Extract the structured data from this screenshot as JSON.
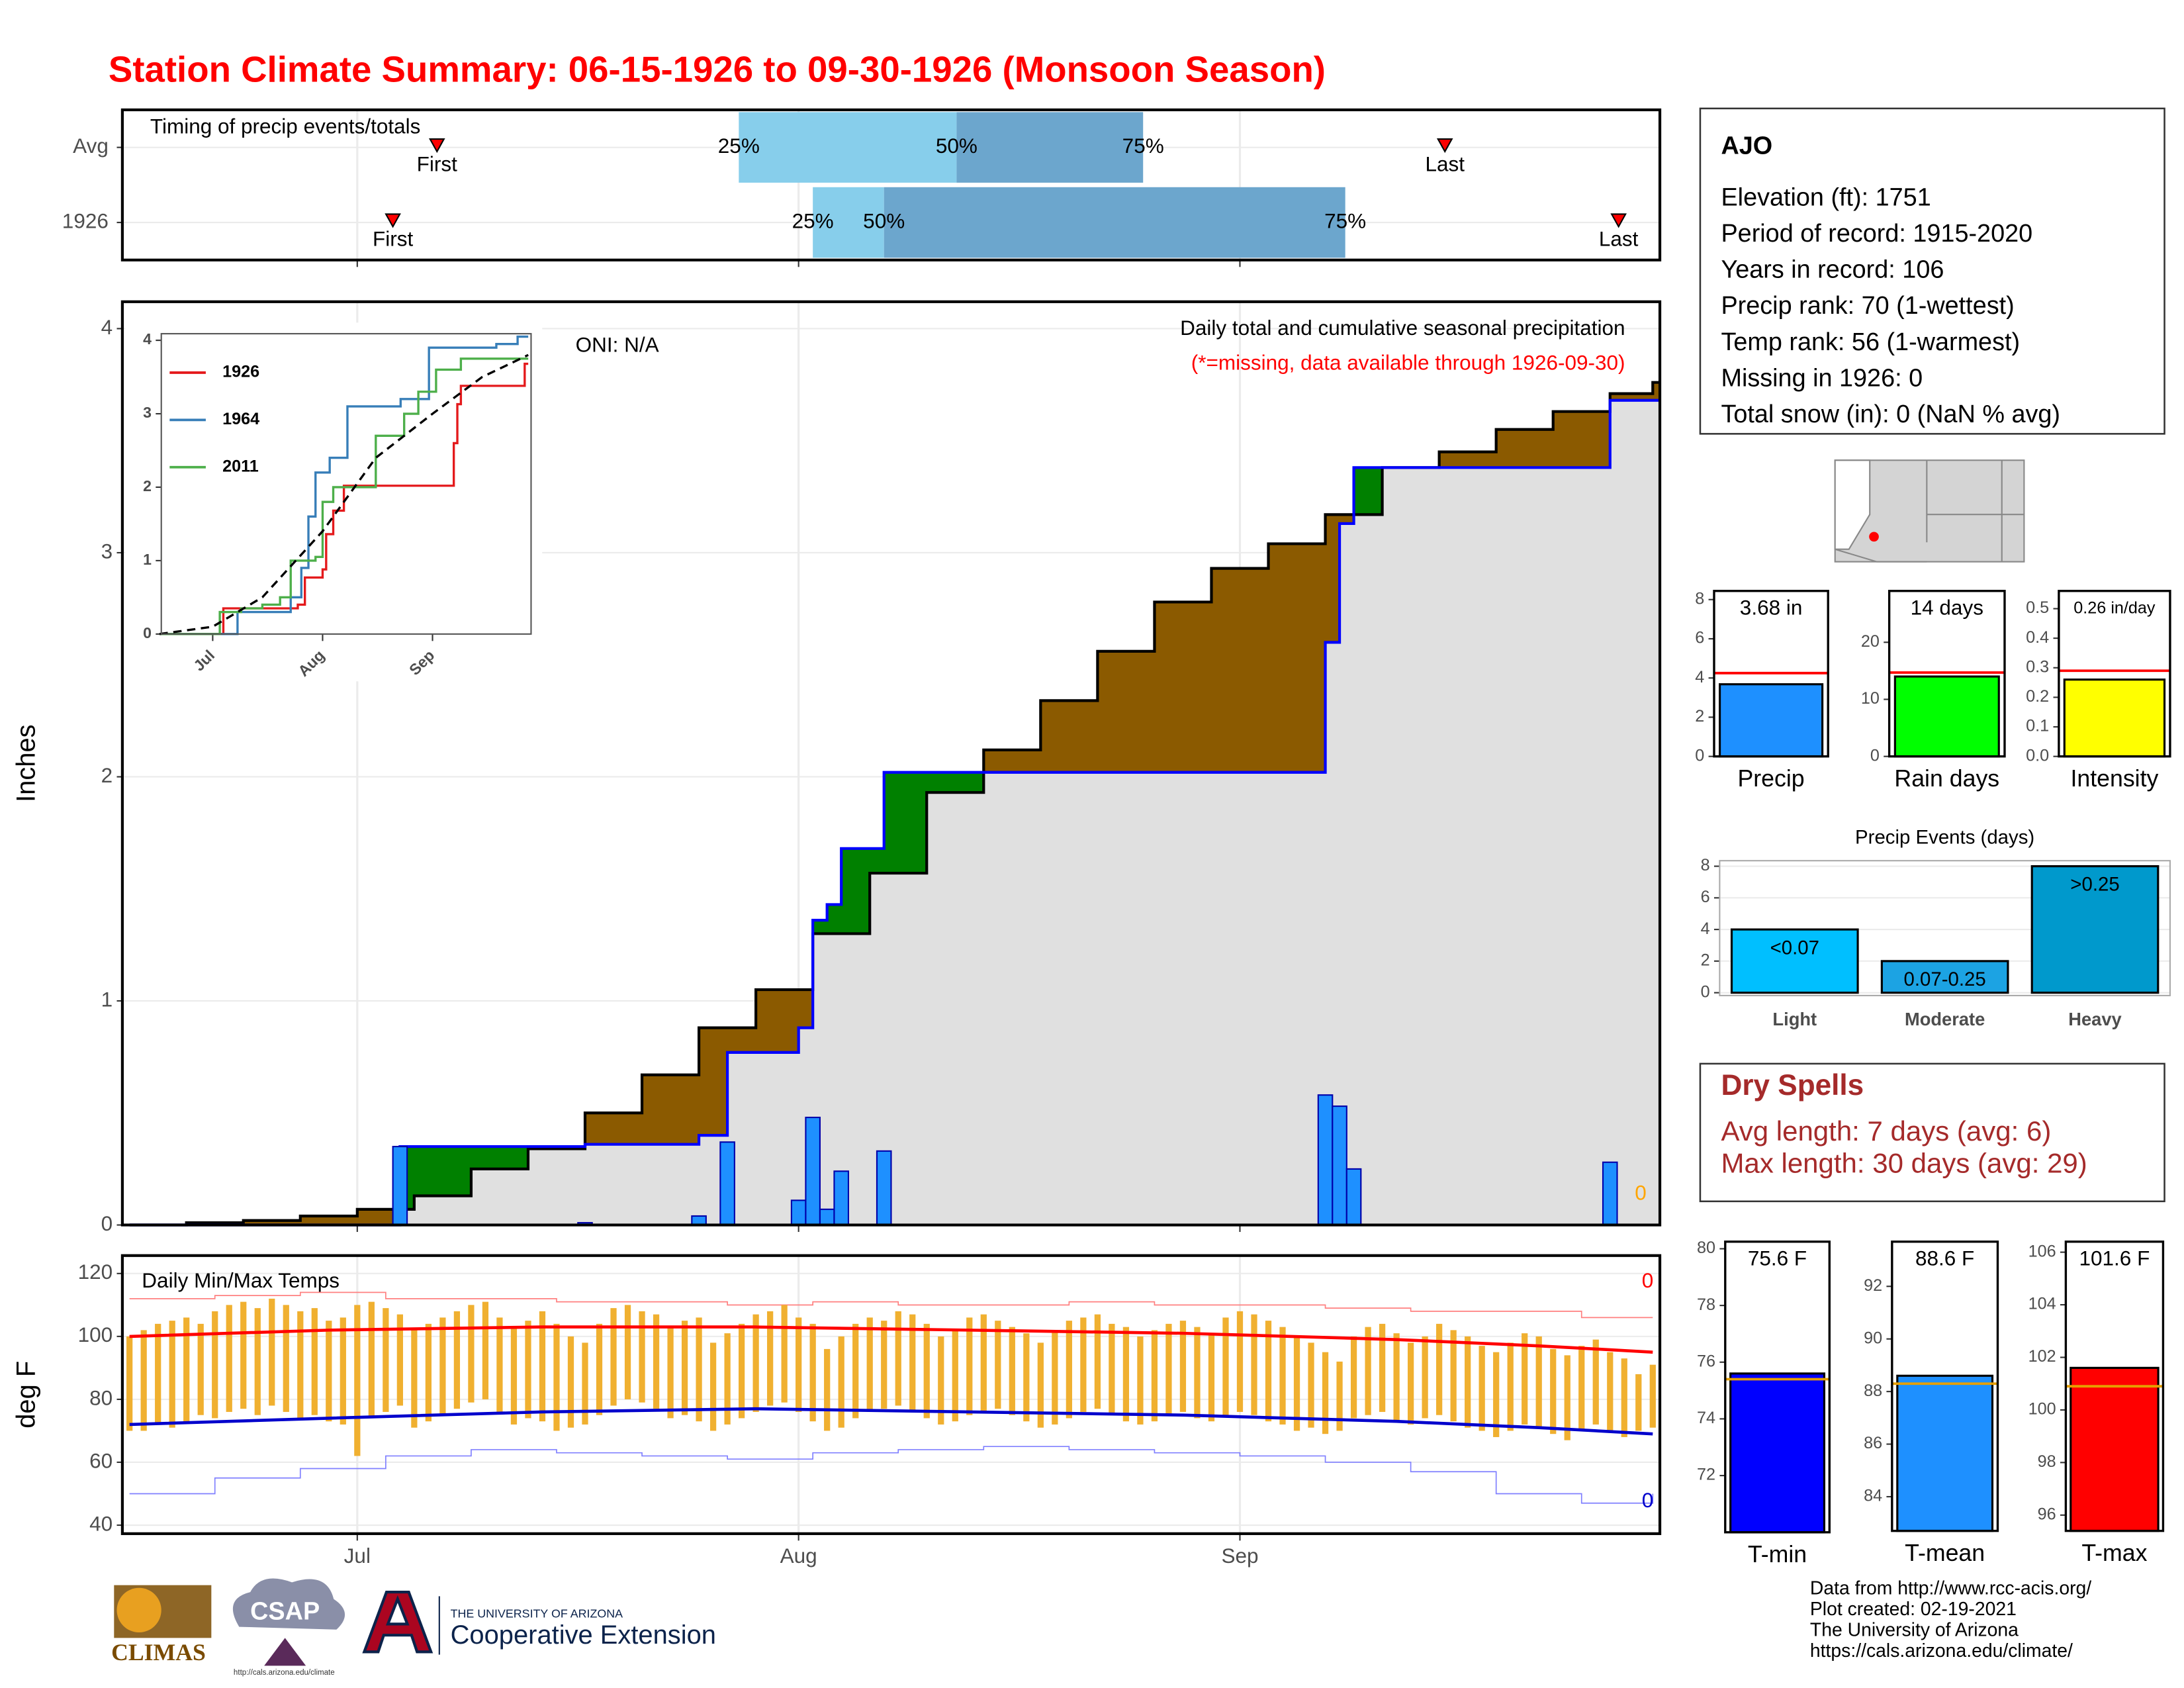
{
  "title": "Station Climate Summary: 06-15-1926 to 09-30-1926 (Monsoon Season)",
  "chart_data": [
    {
      "type": "timeline",
      "title": "Timing of precip events/totals",
      "categories": [
        "Avg",
        "1926"
      ],
      "first": [
        187.6,
        184.5
      ],
      "q25": [
        208.8,
        214
      ],
      "q50": [
        224.1,
        219
      ],
      "q75": [
        237.2,
        251.4
      ],
      "last": [
        258.4,
        270.6
      ],
      "q_labels": [
        "25%",
        "50%",
        "75%"
      ],
      "first_label": "First",
      "last_label": "Last",
      "colors": [
        "#87ceeb",
        "#6ca6cd"
      ],
      "marker_color": "#ff0000",
      "xlim": [
        165.5,
        273.5
      ],
      "xticks": [
        182,
        213,
        244
      ],
      "grid": true
    },
    {
      "type": "area",
      "title": "Daily total and cumulative seasonal precipitation",
      "subtitle": "(*=missing, data available through 1926-09-30)",
      "oni": "ONI: N/A",
      "missing": 0,
      "ylabel": "Inches",
      "daily": {
        "x": [
          185,
          198,
          206,
          208,
          213,
          214,
          215,
          216,
          219,
          250,
          251,
          252,
          270
        ],
        "values": [
          0.35,
          0.01,
          0.04,
          0.37,
          0.11,
          0.48,
          0.07,
          0.24,
          0.33,
          0.58,
          0.53,
          0.25,
          0.28
        ],
        "color": "#1e90ff"
      },
      "cumulative": {
        "x": [
          166,
          185,
          198,
          206,
          208,
          213,
          214,
          215,
          216,
          219,
          250,
          251,
          252,
          270,
          273
        ],
        "values": [
          0,
          0.35,
          0.36,
          0.4,
          0.77,
          0.88,
          1.36,
          1.43,
          1.68,
          2.02,
          2.6,
          3.13,
          3.38,
          3.68,
          3.68
        ],
        "color": "#0000ff"
      },
      "average": {
        "x": [
          166,
          170,
          174,
          178,
          182,
          186,
          190,
          194,
          198,
          202,
          206,
          210,
          214,
          218,
          222,
          226,
          230,
          234,
          238,
          242,
          246,
          250,
          254,
          258,
          262,
          266,
          270,
          273
        ],
        "values": [
          0,
          0.01,
          0.02,
          0.04,
          0.07,
          0.13,
          0.25,
          0.34,
          0.5,
          0.67,
          0.88,
          1.05,
          1.3,
          1.57,
          1.93,
          2.12,
          2.34,
          2.56,
          2.78,
          2.93,
          3.04,
          3.17,
          3.38,
          3.45,
          3.55,
          3.63,
          3.71,
          3.76
        ],
        "color": "#000000"
      },
      "above_color": "#008000",
      "below_color": "#8b5a00",
      "base_color": "#e0e0e0",
      "xlim": [
        165.5,
        273.5
      ],
      "xticks": [
        182,
        213,
        244
      ],
      "ylim": [
        0,
        4.12
      ],
      "yticks": [
        0,
        1,
        2,
        3,
        4
      ],
      "grid": true
    },
    {
      "type": "line",
      "xlim": [
        167.5,
        271.8
      ],
      "ylim": [
        0,
        4.09
      ],
      "yticks": [
        0,
        1,
        2,
        3,
        4
      ],
      "xticks": [
        {
          "value": 182,
          "label": "Jul"
        },
        {
          "value": 213,
          "label": "Aug"
        },
        {
          "value": 244,
          "label": "Sep"
        }
      ],
      "series": [
        {
          "name": "1926",
          "color": "#e41a1c",
          "x": [
            167,
            185,
            206,
            208,
            213,
            214,
            216,
            219,
            250,
            251,
            252,
            270,
            271
          ],
          "values": [
            0,
            0.35,
            0.4,
            0.77,
            0.88,
            1.36,
            1.68,
            2.02,
            2.6,
            3.13,
            3.38,
            3.68,
            3.68
          ]
        },
        {
          "name": "1964",
          "color": "#377eb8",
          "x": [
            167,
            189,
            204,
            207,
            209,
            211,
            215,
            220,
            235,
            243,
            262,
            268,
            271
          ],
          "values": [
            0,
            0.3,
            0.5,
            0.9,
            1.6,
            2.2,
            2.4,
            3.1,
            3.2,
            3.9,
            3.95,
            4.05,
            4.05
          ]
        },
        {
          "name": "2011",
          "color": "#4daf4a",
          "x": [
            167,
            184,
            190,
            196,
            201,
            204,
            211,
            213,
            216,
            220,
            228,
            236,
            240,
            245,
            252,
            271
          ],
          "values": [
            0,
            0.3,
            0.35,
            0.4,
            0.5,
            1.0,
            1.05,
            1.8,
            2.0,
            2.0,
            2.7,
            3.0,
            3.3,
            3.6,
            3.75,
            3.75
          ]
        },
        {
          "color": "#000000",
          "dashed": true,
          "x": [
            167,
            182,
            196,
            213,
            228,
            244,
            258,
            271
          ],
          "values": [
            0,
            0.1,
            0.5,
            1.4,
            2.4,
            3.0,
            3.5,
            3.8
          ]
        }
      ]
    },
    {
      "type": "range",
      "title": "Daily Min/Max Temps",
      "ylabel": "deg F",
      "missing_high": 0,
      "missing_low": 0,
      "x": [
        166,
        167,
        168,
        169,
        170,
        171,
        172,
        173,
        174,
        175,
        176,
        177,
        178,
        179,
        180,
        181,
        182,
        183,
        184,
        185,
        186,
        187,
        188,
        189,
        190,
        191,
        192,
        193,
        194,
        195,
        196,
        197,
        198,
        199,
        200,
        201,
        202,
        203,
        204,
        205,
        206,
        207,
        208,
        209,
        210,
        211,
        212,
        213,
        214,
        215,
        216,
        217,
        218,
        219,
        220,
        221,
        222,
        223,
        224,
        225,
        226,
        227,
        228,
        229,
        230,
        231,
        232,
        233,
        234,
        235,
        236,
        237,
        238,
        239,
        240,
        241,
        242,
        243,
        244,
        245,
        246,
        247,
        248,
        249,
        250,
        251,
        252,
        253,
        254,
        255,
        256,
        257,
        258,
        259,
        260,
        261,
        262,
        263,
        264,
        265,
        266,
        267,
        268,
        269,
        270,
        271,
        272,
        273
      ],
      "tmax": [
        100,
        102,
        104,
        105,
        106,
        104,
        108,
        110,
        111,
        109,
        112,
        110,
        108,
        109,
        105,
        106,
        110,
        111,
        109,
        107,
        102,
        104,
        106,
        108,
        110,
        111,
        106,
        103,
        105,
        108,
        104,
        100,
        98,
        104,
        109,
        110,
        108,
        107,
        103,
        105,
        106,
        98,
        101,
        104,
        107,
        108,
        110,
        106,
        104,
        96,
        100,
        104,
        106,
        105,
        108,
        107,
        104,
        100,
        102,
        106,
        107,
        105,
        103,
        101,
        98,
        102,
        105,
        106,
        107,
        104,
        103,
        100,
        102,
        104,
        105,
        103,
        101,
        106,
        108,
        107,
        105,
        103,
        100,
        98,
        95,
        92,
        100,
        103,
        104,
        101,
        98,
        100,
        104,
        102,
        100,
        97,
        95,
        98,
        101,
        100,
        96,
        94,
        97,
        99,
        95,
        93,
        88,
        91
      ],
      "tmin": [
        70,
        70,
        72,
        71,
        73,
        75,
        74,
        76,
        77,
        75,
        78,
        76,
        74,
        75,
        73,
        72,
        62,
        74,
        76,
        78,
        71,
        73,
        75,
        77,
        79,
        80,
        76,
        72,
        74,
        73,
        70,
        71,
        72,
        75,
        78,
        80,
        79,
        77,
        74,
        75,
        73,
        70,
        72,
        74,
        76,
        78,
        79,
        76,
        73,
        70,
        71,
        74,
        76,
        77,
        78,
        76,
        74,
        72,
        73,
        75,
        76,
        77,
        75,
        73,
        71,
        72,
        74,
        76,
        77,
        75,
        73,
        72,
        73,
        75,
        76,
        74,
        73,
        75,
        76,
        75,
        73,
        72,
        70,
        71,
        69,
        70,
        74,
        75,
        76,
        73,
        72,
        74,
        75,
        73,
        71,
        70,
        68,
        70,
        72,
        71,
        69,
        67,
        70,
        72,
        70,
        68,
        70,
        71
      ],
      "bar_color": "#f0b030",
      "avg_high": {
        "x": [
          166,
          180,
          195,
          210,
          225,
          240,
          255,
          265,
          273
        ],
        "values": [
          100,
          102,
          103,
          103,
          102,
          101,
          99,
          97,
          95
        ],
        "color": "#ff0000"
      },
      "avg_low": {
        "x": [
          166,
          180,
          195,
          210,
          225,
          240,
          255,
          265,
          273
        ],
        "values": [
          72,
          74,
          76,
          77,
          76,
          75,
          73,
          71,
          69
        ],
        "color": "#0000cc"
      },
      "record_high": {
        "x": [
          166,
          172,
          178,
          184,
          190,
          196,
          202,
          208,
          214,
          220,
          226,
          232,
          238,
          244,
          250,
          256,
          262,
          268,
          273
        ],
        "values": [
          112,
          113,
          114,
          112,
          112,
          111,
          111,
          110,
          111,
          110,
          110,
          111,
          110,
          110,
          109,
          108,
          108,
          106,
          106
        ],
        "color": "#ff8080"
      },
      "record_low": {
        "x": [
          166,
          172,
          178,
          184,
          190,
          196,
          202,
          208,
          214,
          220,
          226,
          232,
          238,
          244,
          250,
          256,
          262,
          268,
          273
        ],
        "values": [
          50,
          55,
          58,
          62,
          64,
          63,
          62,
          61,
          63,
          64,
          65,
          64,
          63,
          62,
          60,
          57,
          50,
          47,
          50
        ],
        "color": "#8080ff"
      },
      "xlim": [
        165.5,
        273.5
      ],
      "xticks": [
        {
          "value": 182,
          "label": "Jul"
        },
        {
          "value": 213,
          "label": "Aug"
        },
        {
          "value": 244,
          "label": "Sep"
        }
      ],
      "ylim": [
        37.3,
        125.7
      ],
      "yticks": [
        40,
        60,
        80,
        100,
        120
      ],
      "grid": true
    },
    {
      "type": "bar",
      "categories": [
        "Precip"
      ],
      "values": [
        3.68
      ],
      "value_labels": [
        "3.68 in"
      ],
      "average": 4.25,
      "average_color": "#ff0000",
      "color": "#1e90ff",
      "ylim": [
        0,
        8.44
      ],
      "yticks": [
        0,
        2,
        4,
        6,
        8
      ]
    },
    {
      "type": "bar",
      "categories": [
        "Rain days"
      ],
      "values": [
        14
      ],
      "value_labels": [
        "14 days"
      ],
      "average": 14.7,
      "average_color": "#ff0000",
      "color": "#00ff00",
      "ylim": [
        0,
        29
      ],
      "yticks": [
        0,
        10,
        20
      ]
    },
    {
      "type": "bar",
      "categories": [
        "Intensity"
      ],
      "values": [
        0.26
      ],
      "value_labels": [
        "0.26 in/day"
      ],
      "average": 0.29,
      "average_color": "#ff0000",
      "color": "#ffff00",
      "ylim": [
        0,
        0.56
      ],
      "yticks": [
        {
          "value": 0,
          "label": "0.0"
        },
        0.1,
        0.2,
        0.3,
        0.4,
        0.5
      ]
    },
    {
      "type": "bar",
      "title": "Precip Events (days)",
      "categories": [
        "Light",
        "Moderate",
        "Heavy"
      ],
      "values": [
        4,
        2,
        8
      ],
      "bar_labels": [
        "<0.07",
        "0.07-0.25",
        ">0.25"
      ],
      "colors": [
        "#00bfff",
        "#1ca3e3",
        "#0099cc"
      ],
      "ylim": [
        -0.18,
        8.35
      ],
      "yticks": [
        0,
        2,
        4,
        6,
        8
      ],
      "grid": true
    },
    {
      "type": "bar",
      "categories": [
        "T-min"
      ],
      "values": [
        75.6
      ],
      "value_labels": [
        "75.6 F"
      ],
      "average": 75.4,
      "average_color": "#e69f00",
      "color": "#0000ff",
      "ylim": [
        70,
        80.25
      ],
      "yticks": [
        72,
        74,
        76,
        78,
        80
      ]
    },
    {
      "type": "bar",
      "categories": [
        "T-mean"
      ],
      "values": [
        88.6
      ],
      "value_labels": [
        "88.6 F"
      ],
      "average": 88.3,
      "average_color": "#e69f00",
      "color": "#1e90ff",
      "ylim": [
        82.7,
        93.7
      ],
      "yticks": [
        84,
        86,
        88,
        90,
        92
      ]
    },
    {
      "type": "bar",
      "categories": [
        "T-max"
      ],
      "values": [
        101.6
      ],
      "value_labels": [
        "101.6 F"
      ],
      "average": 100.9,
      "average_color": "#e69f00",
      "color": "#ff0000",
      "ylim": [
        95.4,
        106.4
      ],
      "yticks": [
        96,
        98,
        100,
        102,
        104,
        106
      ]
    }
  ],
  "station": {
    "name": "AJO",
    "lines": [
      "Elevation (ft): 1751",
      "Period of record: 1915-2020",
      "Years in record: 106",
      "Precip rank: 70 (1-wettest)",
      "Temp rank: 56 (1-warmest)",
      "Missing in 1926: 0",
      "Total snow (in): 0 (NaN % avg)"
    ]
  },
  "dry_spells": {
    "title": "Dry Spells",
    "lines": [
      "Avg length: 7 days (avg: 6)",
      "Max length: 30 days (avg: 29)"
    ]
  },
  "footer": [
    "Data from http://www.rcc-acis.org/",
    "Plot created: 02-19-2021",
    "The University of Arizona",
    "https://cals.arizona.edu/climate/"
  ],
  "logos": {
    "climas": "CLIMAS",
    "csap": "CSAP",
    "csap_url": "http://cals.arizona.edu/climate",
    "ua": "THE UNIVERSITY OF ARIZONA",
    "extension": "Cooperative Extension"
  }
}
